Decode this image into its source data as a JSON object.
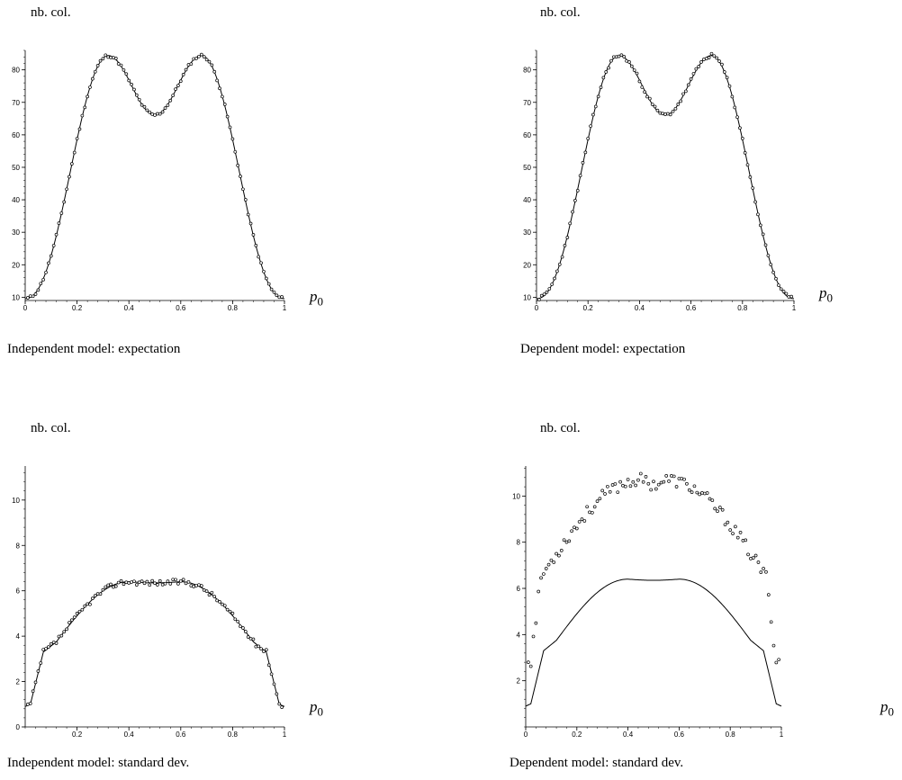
{
  "chart_data": [
    {
      "type": "scatter",
      "ylabel": "nb. col.",
      "xlabel": "p0",
      "caption": "Independent model: expectation",
      "xlim": [
        0,
        1
      ],
      "ylim": [
        9,
        86
      ],
      "xticks": [
        0,
        0.2,
        0.4,
        0.6,
        0.8,
        1
      ],
      "yticks": [
        10,
        20,
        30,
        40,
        50,
        60,
        70,
        80
      ],
      "model_curve": "expectation",
      "series": [
        {
          "name": "",
          "kind": "points",
          "noise": 0.5,
          "seed": 11
        },
        {
          "name": "",
          "kind": "line"
        }
      ]
    },
    {
      "type": "scatter",
      "ylabel": "nb. col.",
      "xlabel": "p0",
      "caption": "Dependent model: expectation",
      "xlim": [
        0,
        1
      ],
      "ylim": [
        9,
        86
      ],
      "xticks": [
        0,
        0.2,
        0.4,
        0.6,
        0.8,
        1
      ],
      "yticks": [
        10,
        20,
        30,
        40,
        50,
        60,
        70,
        80
      ],
      "model_curve": "expectation",
      "series": [
        {
          "name": "",
          "kind": "points",
          "noise": 0.6,
          "seed": 23
        },
        {
          "name": "",
          "kind": "line"
        }
      ]
    },
    {
      "type": "scatter",
      "ylabel": "nb. col.",
      "xlabel": "p0",
      "caption": "Independent model: standard dev.",
      "xlim": [
        0,
        1
      ],
      "ylim": [
        0,
        11.5
      ],
      "xticks": [
        0.2,
        0.4,
        0.6,
        0.8,
        1
      ],
      "yticks": [
        0,
        2,
        4,
        6,
        8,
        10
      ],
      "model_curve": "stddev",
      "series": [
        {
          "name": "",
          "kind": "points",
          "noise": 0.12,
          "seed": 37
        },
        {
          "name": "",
          "kind": "line"
        }
      ]
    },
    {
      "type": "scatter",
      "ylabel": "nb. col.",
      "xlabel": "p0",
      "caption": "Dependent model: standard dev.",
      "xlim": [
        0,
        1
      ],
      "ylim": [
        0,
        11.3
      ],
      "xticks": [
        0,
        0.2,
        0.4,
        0.6,
        0.8,
        1
      ],
      "yticks": [
        2,
        4,
        6,
        8,
        10
      ],
      "model_curve": "stddev",
      "series": [
        {
          "name": "",
          "kind": "points",
          "curve": "dependent_stddev",
          "noise": 0.28,
          "seed": 53
        },
        {
          "name": "",
          "kind": "line"
        }
      ]
    }
  ]
}
